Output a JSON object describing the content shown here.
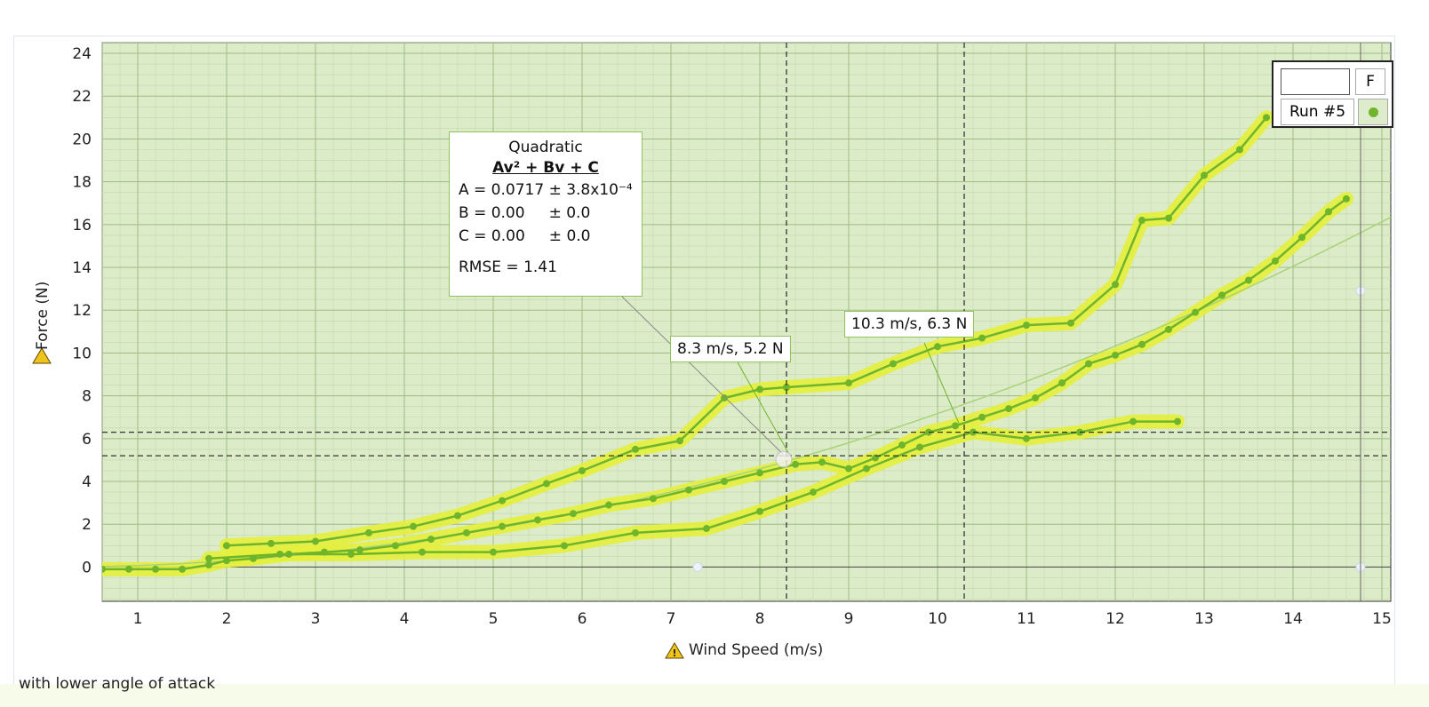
{
  "caption": "with lower angle of attack",
  "legend": {
    "header": "F",
    "run_label": "Run #5"
  },
  "fit": {
    "title": "Quadratic",
    "formula": "Av² + Bv + C",
    "a_line": "A = 0.0717 ± 3.8x10⁻⁴",
    "b_line": "B = 0.00     ± 0.0",
    "c_line": "C = 0.00     ± 0.0",
    "rmse": "RMSE = 1.41"
  },
  "crosshairs": [
    {
      "label": "8.3 m/s, 5.2 N",
      "x": 8.3,
      "y": 5.2
    },
    {
      "label": "10.3 m/s, 6.3 N",
      "x": 10.3,
      "y": 6.3
    }
  ],
  "colors": {
    "plot_bg": "#dcebc8",
    "series": "#6fb52b",
    "highlight": "#e4f03c",
    "fit_line": "#a9d27a"
  },
  "chart_data": {
    "type": "line",
    "xlabel": "Wind Speed (m/s)",
    "ylabel": "Force (N)",
    "xlim": [
      0.6,
      15.1
    ],
    "ylim": [
      -1.6,
      24.5
    ],
    "xticks": [
      1,
      2,
      3,
      4,
      5,
      6,
      7,
      8,
      9,
      10,
      11,
      12,
      13,
      14,
      15
    ],
    "yticks": [
      0,
      2,
      4,
      6,
      8,
      10,
      12,
      14,
      16,
      18,
      20,
      22,
      24
    ],
    "grid": true,
    "legend_position": "top-right",
    "fit": {
      "type": "quadratic",
      "A": 0.0717,
      "B": 0.0,
      "C": 0.0
    },
    "series": [
      {
        "name": "Run #5",
        "x": [
          0.6,
          0.9,
          1.2,
          1.5,
          1.8,
          2.0,
          2.3,
          2.7,
          3.1,
          3.5,
          3.9,
          4.3,
          4.7,
          5.1,
          5.5,
          5.9,
          6.3,
          6.8,
          7.2,
          7.6,
          8.0,
          8.4,
          8.7,
          9.0,
          9.3,
          9.6,
          9.9,
          10.2,
          10.5,
          10.8,
          11.1,
          11.4,
          11.7,
          12.0,
          12.3,
          12.6,
          12.9,
          13.2,
          13.5,
          13.8,
          14.1,
          14.4,
          14.6
        ],
        "y": [
          -0.1,
          -0.1,
          -0.1,
          -0.1,
          0.1,
          0.3,
          0.4,
          0.6,
          0.7,
          0.8,
          1.0,
          1.3,
          1.6,
          1.9,
          2.2,
          2.5,
          2.9,
          3.2,
          3.6,
          4.0,
          4.4,
          4.8,
          4.9,
          4.6,
          5.1,
          5.7,
          6.3,
          6.6,
          7.0,
          7.4,
          7.9,
          8.6,
          9.5,
          9.9,
          10.4,
          11.1,
          11.9,
          12.7,
          13.4,
          14.3,
          15.4,
          16.6,
          17.2
        ]
      },
      {
        "name": "",
        "x": [
          2.0,
          2.5,
          3.0,
          3.6,
          4.1,
          4.6,
          5.1,
          5.6,
          6.0,
          6.6,
          7.1,
          7.6,
          8.0,
          8.3
        ],
        "y": [
          1.0,
          1.1,
          1.2,
          1.6,
          1.9,
          2.4,
          3.1,
          3.9,
          4.5,
          5.5,
          5.9,
          7.9,
          8.3,
          8.4
        ]
      },
      {
        "name": "",
        "x": [
          8.3,
          9.0,
          9.5,
          10.0,
          10.5,
          11.0,
          11.5,
          12.0,
          12.3,
          12.6,
          13.0,
          13.4,
          13.7
        ],
        "y": [
          8.4,
          8.6,
          9.5,
          10.3,
          10.7,
          11.3,
          11.4,
          13.2,
          16.2,
          16.3,
          18.3,
          19.5,
          21.0
        ]
      },
      {
        "name": "",
        "x": [
          1.8,
          2.6,
          3.4,
          4.2,
          5.0,
          5.8,
          6.6,
          7.4,
          8.0,
          8.6,
          9.2,
          9.8,
          10.4,
          11.0,
          11.6,
          12.2,
          12.7
        ],
        "y": [
          0.4,
          0.6,
          0.6,
          0.7,
          0.7,
          1.0,
          1.6,
          1.8,
          2.6,
          3.5,
          4.6,
          5.6,
          6.3,
          6.0,
          6.3,
          6.8,
          6.8
        ]
      }
    ]
  }
}
